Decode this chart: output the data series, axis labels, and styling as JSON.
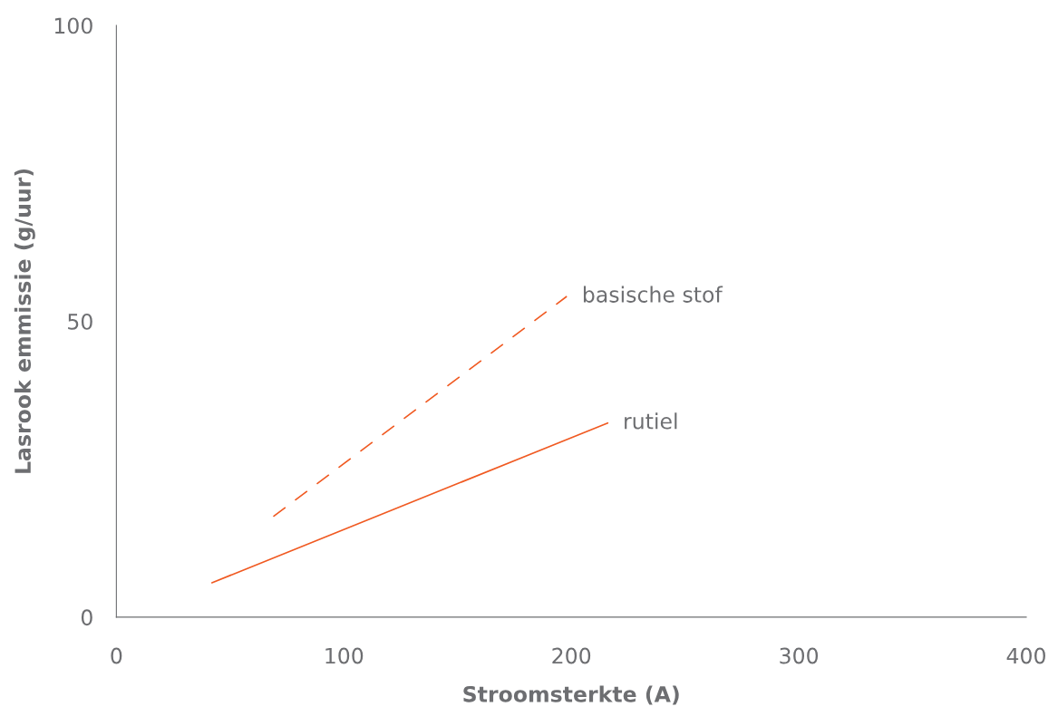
{
  "chart_data": {
    "type": "line",
    "xlabel": "Stroomsterkte (A)",
    "ylabel": "Lasrook emmissie (g/uur)",
    "xlim": [
      0,
      400
    ],
    "ylim": [
      0,
      100
    ],
    "xticks": [
      0,
      100,
      200,
      300,
      400
    ],
    "yticks": [
      0,
      50,
      100
    ],
    "grid": false,
    "legend": false,
    "series": [
      {
        "name": "basische stof",
        "color": "#f05a22",
        "line_style": "dashed",
        "x": [
          69,
          198
        ],
        "values": [
          17,
          54.2
        ]
      },
      {
        "name": "rutiel",
        "color": "#f05a22",
        "line_style": "solid",
        "x": [
          42,
          216
        ],
        "values": [
          5.8,
          32.8
        ]
      }
    ]
  }
}
